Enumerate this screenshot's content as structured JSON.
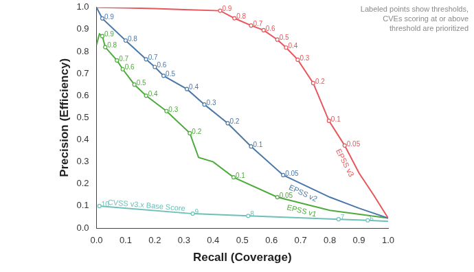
{
  "chart_data": {
    "type": "line",
    "x_label": "Recall (Coverage)",
    "y_label": "Precision (Efficiency)",
    "annotation": [
      "Labeled points show thresholds,",
      "CVEs scoring at or above",
      "threshold are prioritized"
    ],
    "xlim": [
      0,
      1
    ],
    "ylim": [
      0,
      1
    ],
    "xticks": [
      {
        "value": 0,
        "label": "0.0"
      },
      0.1,
      0.2,
      0.3,
      0.4,
      0.5,
      0.6,
      0.7,
      0.8,
      0.9,
      {
        "value": 1,
        "label": "1.0"
      }
    ],
    "yticks": [
      {
        "value": 0,
        "label": "0.0"
      },
      0.1,
      0.2,
      0.3,
      0.4,
      0.5,
      0.6,
      0.7,
      0.8,
      0.9,
      {
        "value": 1,
        "label": "1.0"
      }
    ],
    "grid": false,
    "series": [
      {
        "name": "EPSS v3",
        "color": "#e8555a",
        "x": [
          0,
          0.1,
          0.2,
          0.3,
          0.424,
          0.473,
          0.53,
          0.573,
          0.62,
          0.65,
          0.69,
          0.743,
          0.797,
          0.851,
          0.9,
          0.95,
          1.0
        ],
        "values": [
          1.0,
          0.998,
          0.995,
          0.99,
          0.985,
          0.951,
          0.918,
          0.897,
          0.854,
          0.818,
          0.763,
          0.657,
          0.486,
          0.374,
          0.25,
          0.15,
          0.045
        ],
        "thresholds": [
          null,
          null,
          null,
          null,
          0.9,
          0.8,
          0.7,
          0.6,
          0.5,
          0.4,
          0.3,
          0.2,
          0.1,
          0.05,
          null,
          null,
          null
        ]
      },
      {
        "name": "EPSS v2",
        "color": "#4a78a8",
        "x": [
          0,
          0.02,
          0.1,
          0.17,
          0.2,
          0.23,
          0.31,
          0.37,
          0.45,
          0.53,
          0.64,
          0.8,
          0.9,
          1.0
        ],
        "values": [
          1.0,
          0.95,
          0.85,
          0.765,
          0.73,
          0.69,
          0.63,
          0.56,
          0.475,
          0.37,
          0.24,
          0.14,
          0.09,
          0.045
        ],
        "thresholds": [
          null,
          0.9,
          0.8,
          0.7,
          0.6,
          0.5,
          0.4,
          0.3,
          0.2,
          0.1,
          0.05,
          null,
          null,
          null
        ]
      },
      {
        "name": "EPSS v1",
        "color": "#4daa3c",
        "x": [
          0,
          0.01,
          0.02,
          0.03,
          0.07,
          0.09,
          0.13,
          0.17,
          0.24,
          0.32,
          0.35,
          0.4,
          0.47,
          0.62,
          0.8,
          1.0
        ],
        "values": [
          0.83,
          0.88,
          0.87,
          0.82,
          0.76,
          0.72,
          0.65,
          0.6,
          0.53,
          0.43,
          0.32,
          0.3,
          0.23,
          0.14,
          0.08,
          0.045
        ],
        "thresholds": [
          null,
          null,
          0.9,
          0.8,
          0.7,
          0.6,
          0.5,
          0.4,
          0.3,
          0.2,
          null,
          null,
          0.1,
          0.05,
          null,
          null
        ]
      },
      {
        "name": "CVSS v3.x Base Score",
        "color": "#6cc0b8",
        "x": [
          0.01,
          0.33,
          0.52,
          0.83,
          0.93,
          1.0
        ],
        "values": [
          0.1,
          0.065,
          0.055,
          0.04,
          0.035,
          0.03
        ],
        "thresholds": [
          10,
          9,
          8,
          7,
          6,
          null
        ]
      }
    ]
  }
}
